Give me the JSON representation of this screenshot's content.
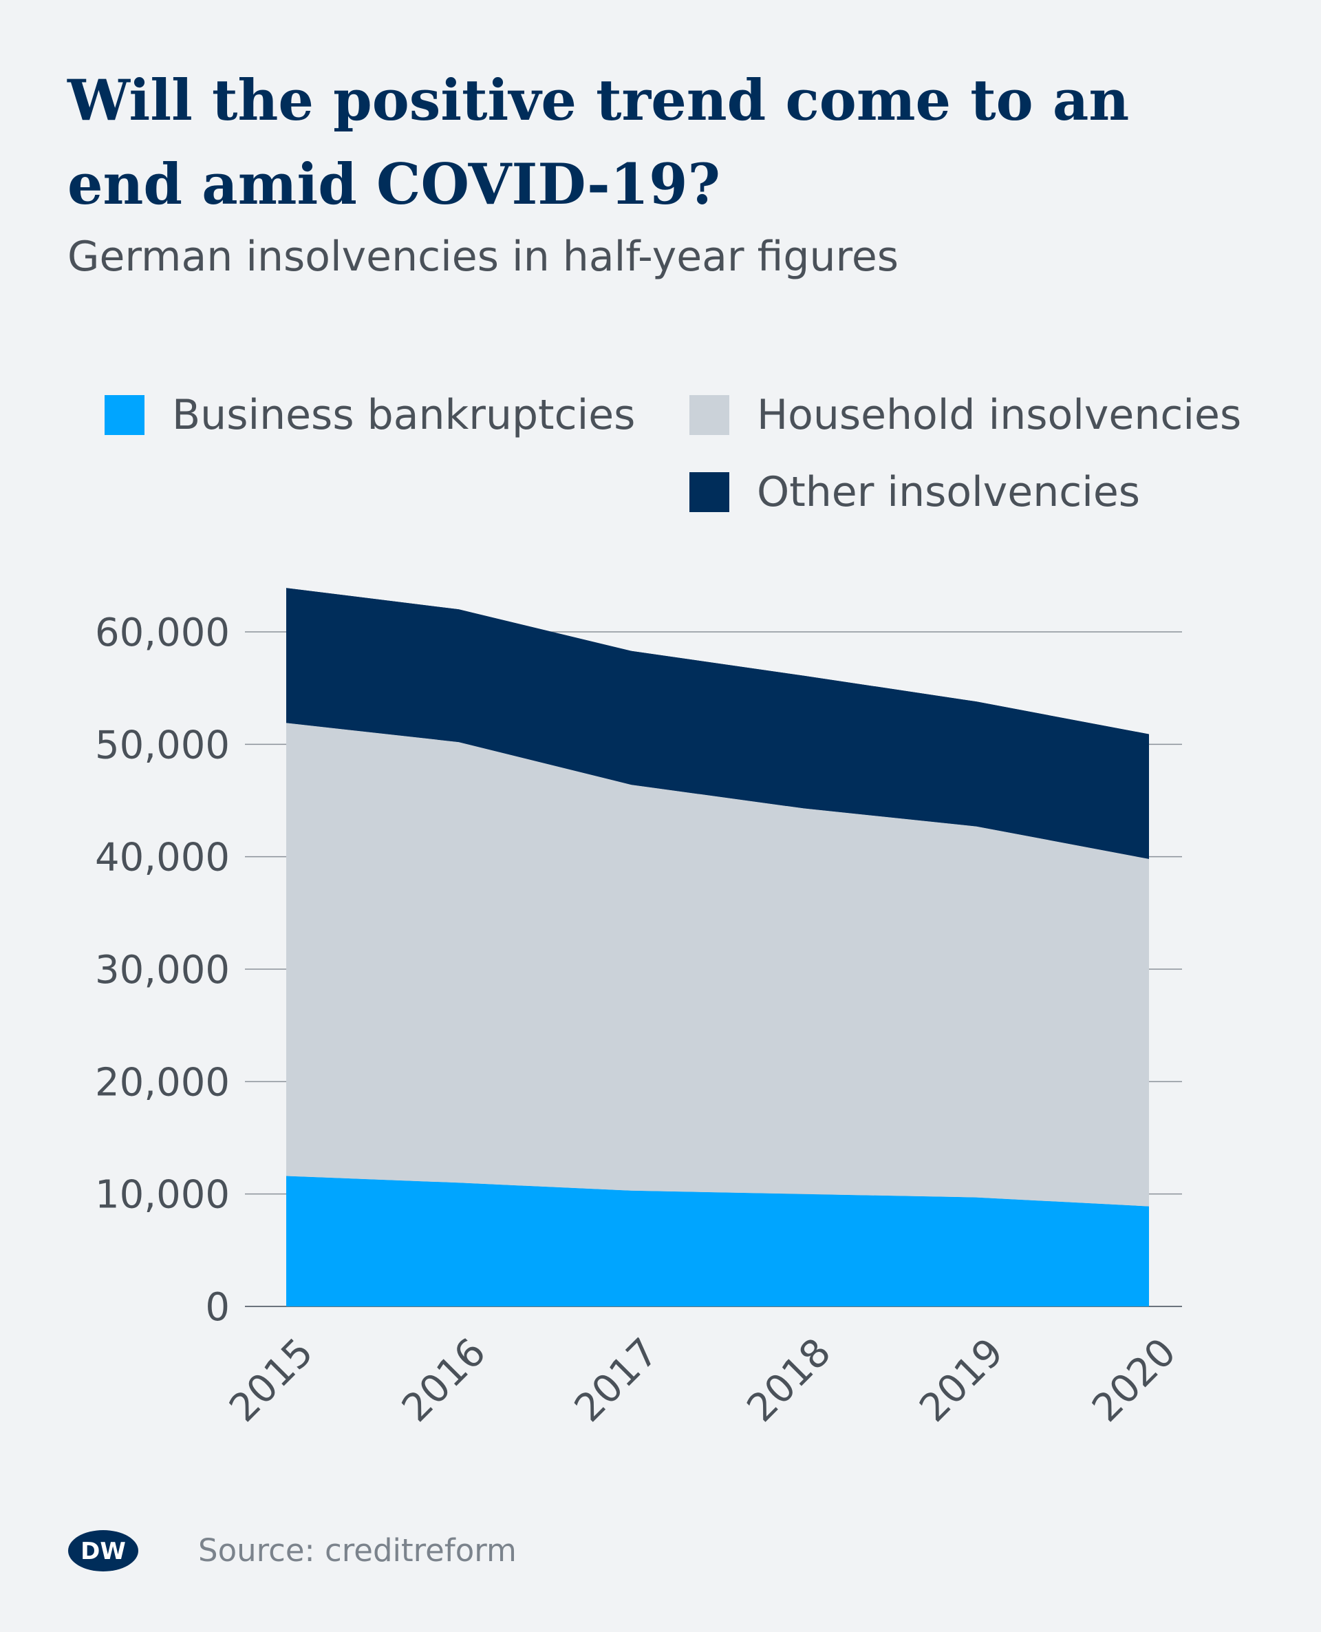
{
  "title": "Will the positive trend come to an end amid COVID-19?",
  "subtitle": "German insolvencies in half-year figures",
  "legend": [
    {
      "label": "Business bankruptcies",
      "color": "#00a5ff"
    },
    {
      "label": "Household insolvencies",
      "color": "#cbd2d9"
    },
    {
      "label": "Other insolvencies",
      "color": "#002d5a"
    }
  ],
  "logo_text": "DW",
  "source": "Source: creditreform",
  "chart_data": {
    "type": "area",
    "stacked": true,
    "x": [
      2015,
      2016,
      2017,
      2018,
      2019,
      2020
    ],
    "x_tick_labels": [
      "2015",
      "2016",
      "2017",
      "2018",
      "2019",
      "2020"
    ],
    "series": [
      {
        "name": "Business bankruptcies",
        "color": "#00a5ff",
        "values": [
          11600,
          11000,
          10300,
          10000,
          9700,
          8900
        ]
      },
      {
        "name": "Household insolvencies",
        "color": "#cbd2d9",
        "values": [
          40300,
          39200,
          36100,
          34300,
          33000,
          30900
        ]
      },
      {
        "name": "Other insolvencies",
        "color": "#002d5a",
        "values": [
          12000,
          11800,
          11900,
          11800,
          11100,
          11100
        ]
      }
    ],
    "y_ticks": [
      0,
      10000,
      20000,
      30000,
      40000,
      50000,
      60000
    ],
    "y_tick_labels": [
      "0",
      "10,000",
      "20,000",
      "30,000",
      "40,000",
      "50,000",
      "60,000"
    ],
    "ylim": [
      0,
      60000
    ],
    "grid": true,
    "legend_position": "top"
  }
}
